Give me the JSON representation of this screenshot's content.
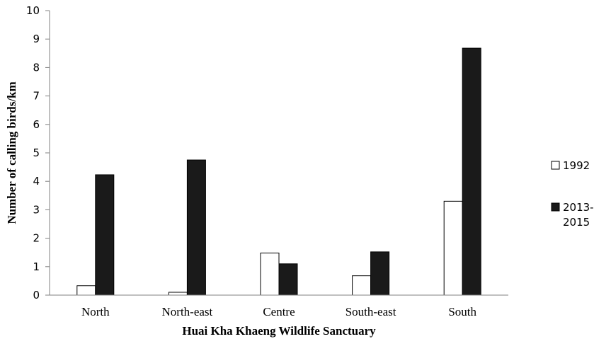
{
  "chart_data": {
    "type": "bar",
    "title": "",
    "xlabel": "Huai Kha Khaeng Wildlife Sanctuary",
    "ylabel": "Number of calling birds/km",
    "ylim": [
      0,
      10
    ],
    "yticks": [
      "0",
      "1",
      "2",
      "3",
      "4",
      "5",
      "6",
      "7",
      "8",
      "9",
      "10"
    ],
    "categories": [
      "North",
      "North-east",
      "Centre",
      "South-east",
      "South"
    ],
    "series": [
      {
        "name": "1992",
        "values": [
          0.33,
          0.1,
          1.48,
          0.68,
          3.3
        ],
        "color": "#ffffff"
      },
      {
        "name": "2013-2015",
        "values": [
          4.23,
          4.75,
          1.1,
          1.52,
          8.68
        ],
        "color": "#1a1a1a"
      }
    ],
    "legend": {
      "placement": "right",
      "items": [
        {
          "line1": "1992",
          "line2": ""
        },
        {
          "line1": "2013-",
          "line2": "2015"
        }
      ]
    },
    "grid": false
  }
}
